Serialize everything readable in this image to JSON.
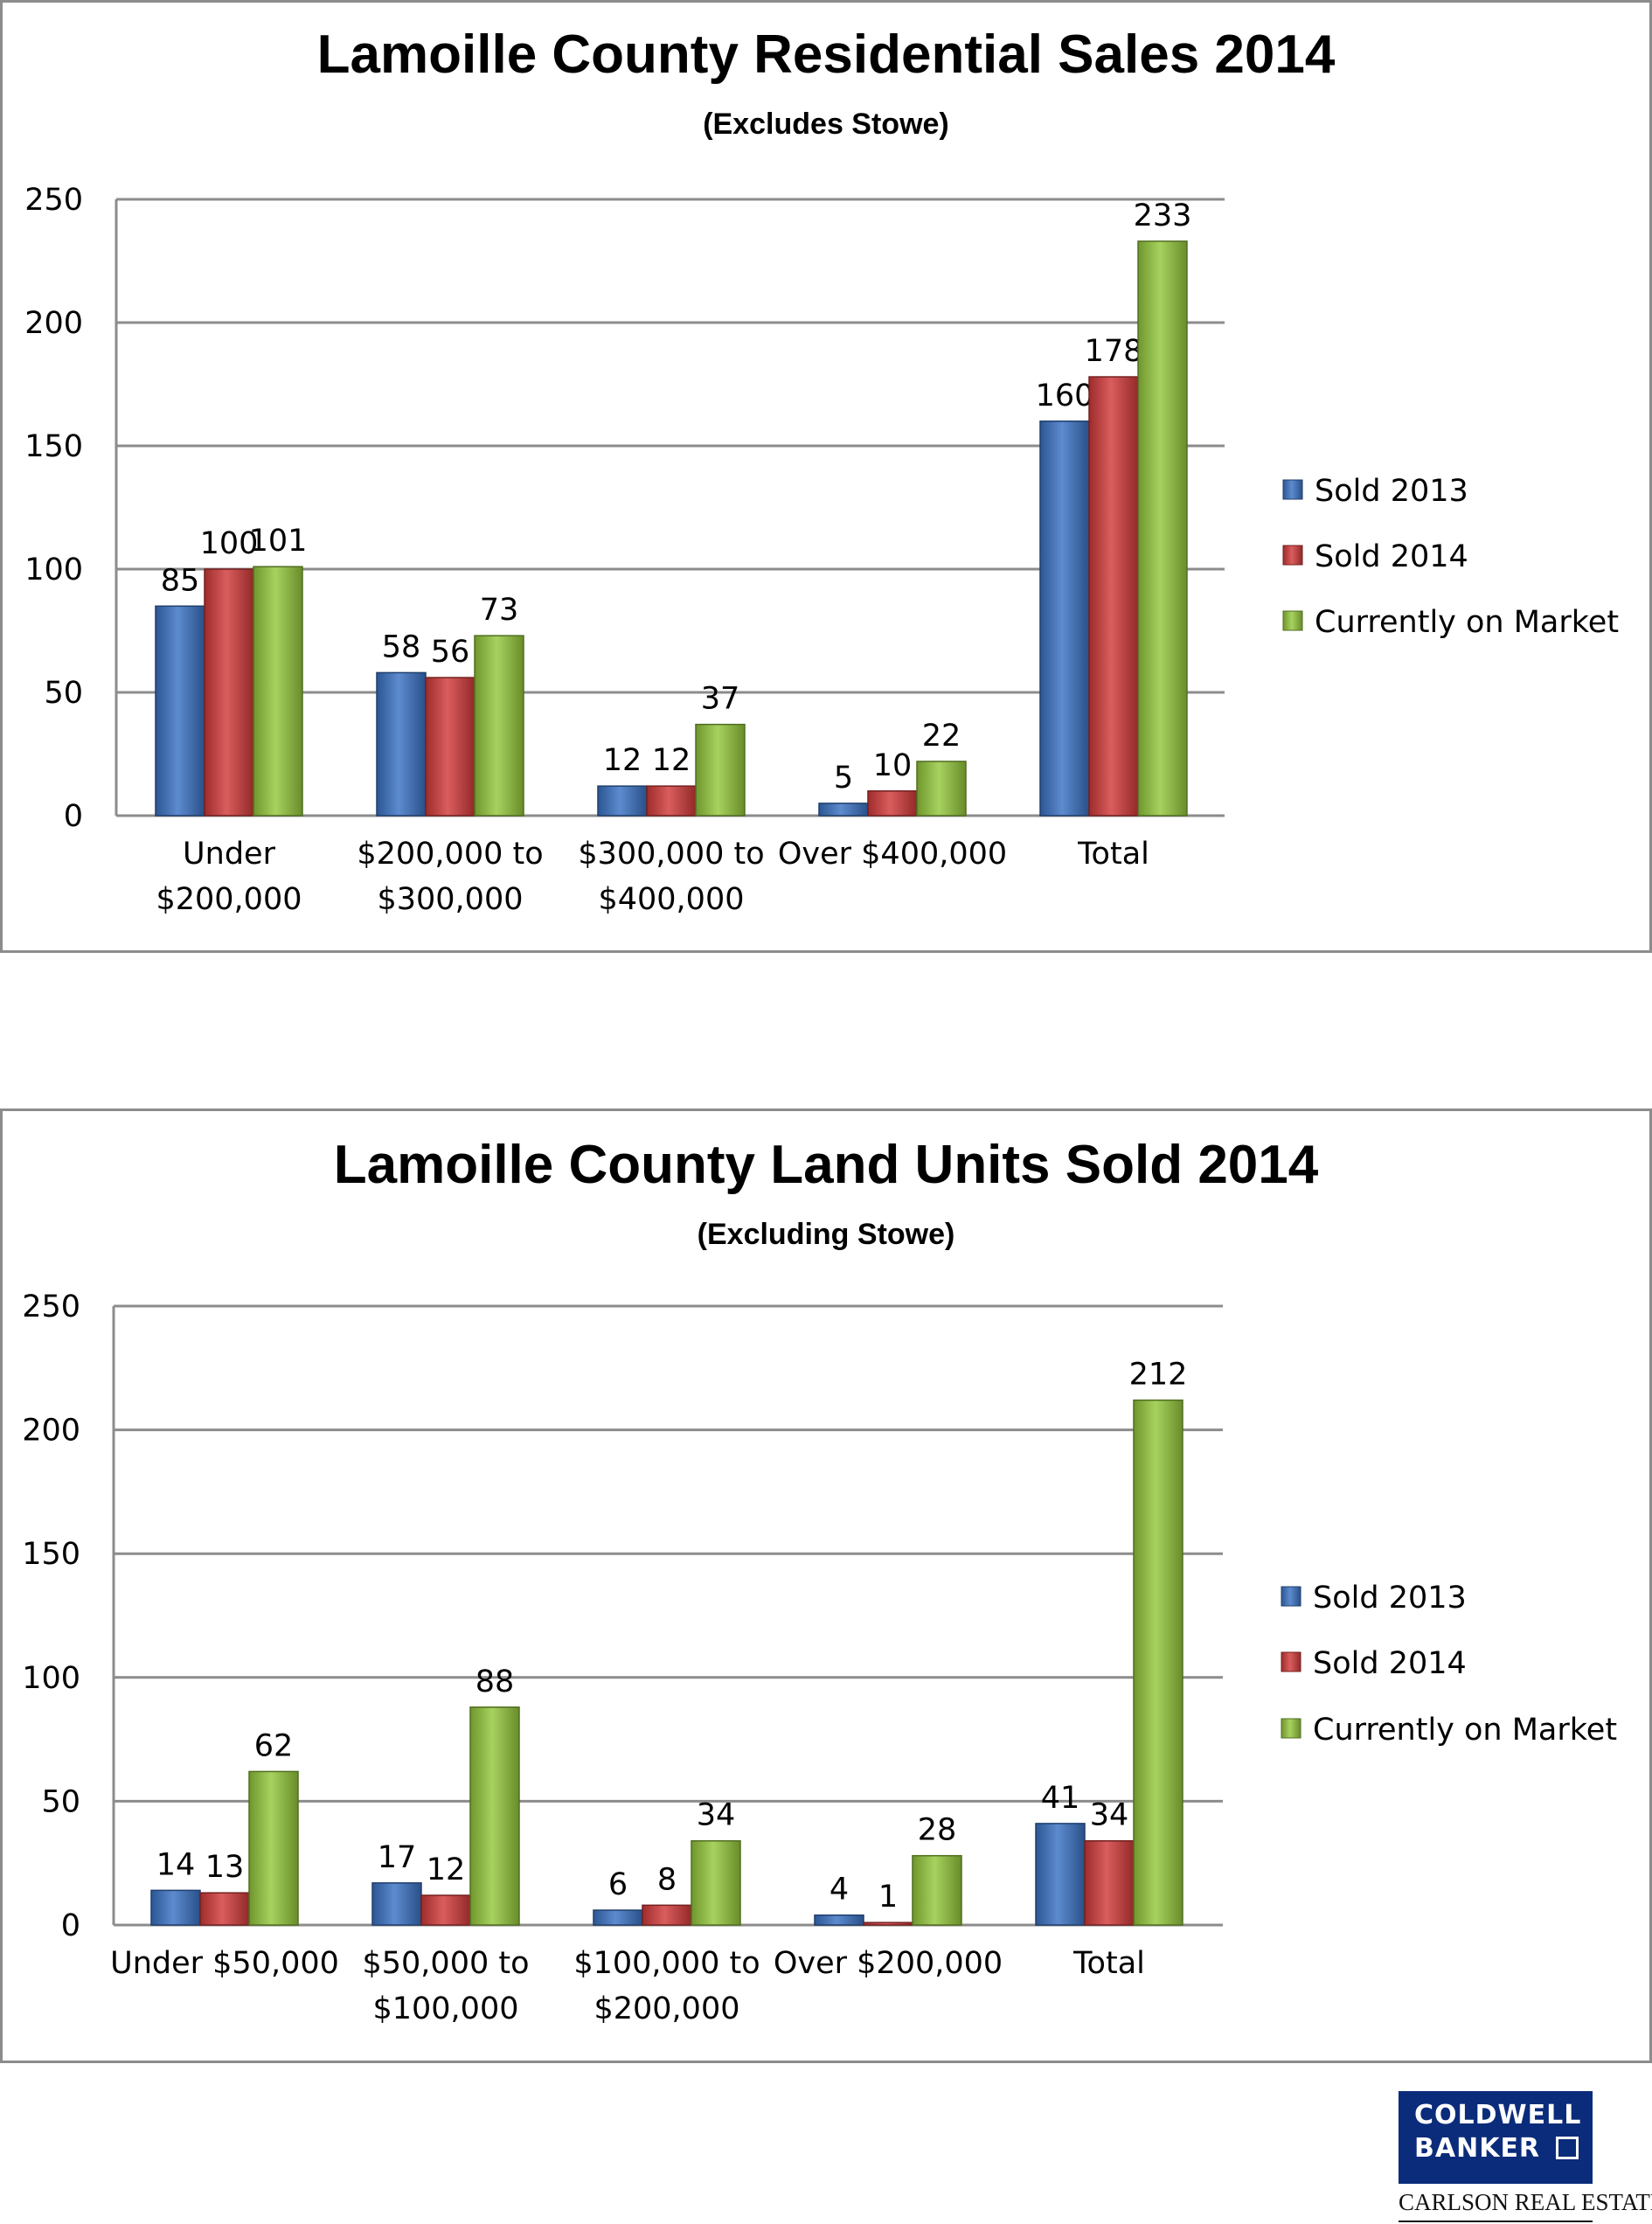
{
  "colors": {
    "sold_2013": "#3a72c4",
    "sold_2014": "#d23a3a",
    "on_market": "#94c83c",
    "gridline": "#8c8c8c",
    "brand_blue": "#0b2c7a"
  },
  "chart_data": [
    {
      "type": "bar",
      "title": "Lamoille County Residential Sales 2014",
      "subtitle": "(Excludes Stowe)",
      "categories": [
        [
          "Under",
          "$200,000"
        ],
        [
          "$200,000 to",
          "$300,000"
        ],
        [
          "$300,000 to",
          "$400,000"
        ],
        [
          "Over $400,000"
        ],
        [
          "Total"
        ]
      ],
      "series": [
        {
          "name": "Sold 2013",
          "values": [
            85,
            58,
            12,
            5,
            160
          ]
        },
        {
          "name": "Sold 2014",
          "values": [
            100,
            56,
            12,
            10,
            178
          ]
        },
        {
          "name": "Currently on Market",
          "values": [
            101,
            73,
            37,
            22,
            233
          ]
        }
      ],
      "ylim": [
        0,
        250
      ],
      "yticks": [
        0,
        50,
        100,
        150,
        200,
        250
      ],
      "grid": true,
      "legend": "right"
    },
    {
      "type": "bar",
      "title": "Lamoille County Land Units Sold 2014",
      "subtitle": "(Excluding Stowe)",
      "categories": [
        [
          "Under $50,000"
        ],
        [
          "$50,000 to",
          "$100,000"
        ],
        [
          "$100,000 to",
          "$200,000"
        ],
        [
          "Over $200,000"
        ],
        [
          "Total"
        ]
      ],
      "series": [
        {
          "name": "Sold 2013",
          "values": [
            14,
            17,
            6,
            4,
            41
          ]
        },
        {
          "name": "Sold 2014",
          "values": [
            13,
            12,
            8,
            1,
            34
          ]
        },
        {
          "name": "Currently on Market",
          "values": [
            62,
            88,
            34,
            28,
            212
          ]
        }
      ],
      "ylim": [
        0,
        250
      ],
      "yticks": [
        0,
        50,
        100,
        150,
        200,
        250
      ],
      "grid": true,
      "legend": "right"
    }
  ],
  "brand": {
    "logo_line1": "COLDWELL",
    "logo_line2": "BANKER",
    "subline": "CARLSON REAL ESTATE"
  }
}
